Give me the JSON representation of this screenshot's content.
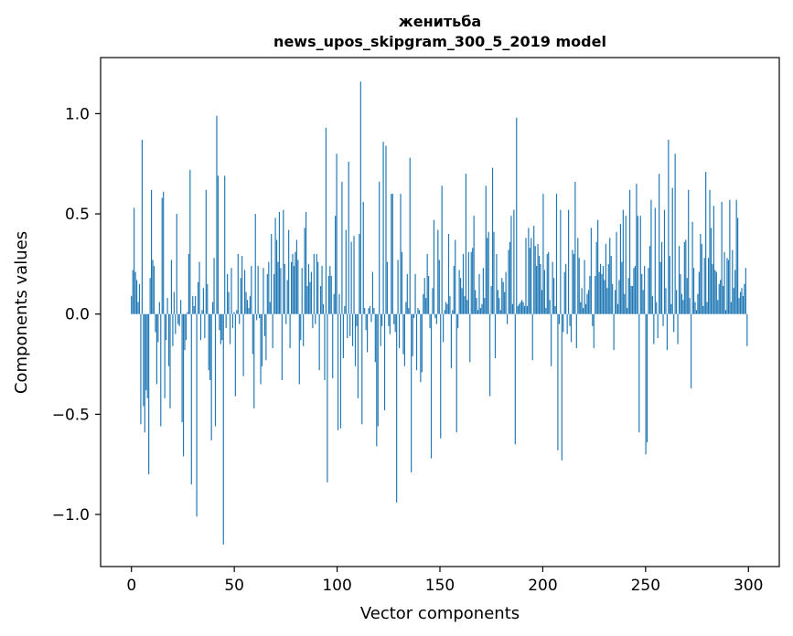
{
  "chart_data": {
    "type": "bar",
    "title": "женитьба",
    "subtitle": "news_upos_skipgram_300_5_2019 model",
    "xlabel": "Vector components",
    "ylabel": "Components values",
    "xlim": [
      -15,
      315
    ],
    "ylim": [
      -1.26,
      1.28
    ],
    "xticks": [
      0,
      50,
      100,
      150,
      200,
      250,
      300
    ],
    "yticks": [
      -1.0,
      -0.5,
      0.0,
      0.5,
      1.0
    ],
    "ytick_labels": [
      "−1.0",
      "−0.5",
      "0.0",
      "0.5",
      "1.0"
    ],
    "bar_color": "#1f77b4",
    "grid": false,
    "values": [
      0.09,
      0.22,
      0.53,
      0.21,
      0.17,
      0.06,
      0.15,
      -0.55,
      0.87,
      -0.46,
      -0.59,
      -0.38,
      -0.42,
      -0.8,
      0.18,
      0.62,
      0.27,
      0.24,
      -0.09,
      -0.35,
      -0.14,
      0.06,
      -0.56,
      0.58,
      0.61,
      -0.42,
      -0.13,
      0.08,
      -0.26,
      -0.47,
      0.27,
      -0.16,
      0.11,
      -0.1,
      0.5,
      -0.05,
      -0.06,
      0.07,
      -0.54,
      -0.71,
      -0.18,
      -0.13,
      0.01,
      0.3,
      0.72,
      -0.85,
      0.09,
      0.04,
      0.09,
      -1.01,
      0.16,
      0.26,
      -0.13,
      0.02,
      0.13,
      -0.12,
      0.62,
      0.15,
      -0.28,
      -0.33,
      -0.63,
      0.06,
      0.28,
      -0.56,
      0.99,
      0.69,
      -0.08,
      -0.15,
      -0.13,
      -1.15,
      0.69,
      -0.07,
      0.2,
      0.11,
      -0.15,
      0.23,
      -0.07,
      0.01,
      -0.41,
      0.02,
      0.3,
      -0.05,
      0.18,
      0.29,
      -0.31,
      0.22,
      0.11,
      0.07,
      0.03,
      0.09,
      0.24,
      -0.2,
      -0.47,
      0.5,
      -0.03,
      0.24,
      -0.02,
      -0.35,
      -0.26,
      0.23,
      -0.11,
      -0.23,
      0.2,
      0.26,
      0.06,
      0.4,
      -0.17,
      0.2,
      0.48,
      0.37,
      0.26,
      0.51,
      0.23,
      -0.33,
      0.52,
      0.25,
      -0.05,
      0.17,
      0.42,
      -0.17,
      0.26,
      0.3,
      0.24,
      0.31,
      0.37,
      0.27,
      -0.35,
      -0.13,
      0.23,
      -0.16,
      0.43,
      0.51,
      0.14,
      0.25,
      0.16,
      0.21,
      -0.07,
      0.3,
      -0.05,
      0.3,
      0.26,
      -0.28,
      0.14,
      0.24,
      0.05,
      -0.33,
      0.93,
      -0.84,
      0.19,
      0.24,
      0.19,
      -0.32,
      0.1,
      0.49,
      0.8,
      -0.58,
      0.1,
      -0.57,
      0.66,
      -0.22,
      0.04,
      0.42,
      -0.12,
      0.76,
      -0.11,
      0.36,
      -0.16,
      0.39,
      -0.26,
      -0.06,
      -0.42,
      0.4,
      1.16,
      -0.55,
      0.56,
      0.03,
      -0.08,
      -0.19,
      0.03,
      0.04,
      -0.04,
      0.21,
      0.03,
      -0.24,
      -0.66,
      -0.56,
      0.66,
      -0.16,
      -0.06,
      0.86,
      -0.48,
      0.84,
      0.26,
      -0.06,
      -0.1,
      0.6,
      0.6,
      -0.05,
      -0.09,
      -0.94,
      0.27,
      -0.17,
      0.6,
      0.31,
      -0.2,
      -0.26,
      0.06,
      0.2,
      0.03,
      0.78,
      -0.79,
      -0.21,
      -0.02,
      0.2,
      -0.28,
      0.03,
      0.02,
      -0.34,
      -0.29,
      0.1,
      0.18,
      0.08,
      0.3,
      0.19,
      -0.07,
      -0.72,
      0.13,
      0.47,
      -0.02,
      -0.05,
      0.42,
      0.27,
      -0.62,
      0.64,
      -0.14,
      0.02,
      0.06,
      0.05,
      0.4,
      0.09,
      -0.27,
      0.02,
      0.24,
      0.37,
      -0.59,
      -0.07,
      0.22,
      0.18,
      0.13,
      0.3,
      0.09,
      0.7,
      0.07,
      0.31,
      -0.24,
      0.31,
      0.33,
      0.49,
      0.12,
      0.08,
      0.02,
      0.2,
      0.03,
      0.05,
      0.23,
      0.08,
      0.64,
      0.38,
      0.41,
      -0.41,
      0.14,
      0.73,
      0.41,
      -0.22,
      0.3,
      0.12,
      0.08,
      0.02,
      0.18,
      0.16,
      0.11,
      0.21,
      -0.05,
      0.32,
      0.36,
      0.49,
      0.05,
      0.52,
      -0.65,
      0.98,
      0.04,
      0.05,
      0.06,
      0.07,
      0.06,
      0.04,
      0.38,
      0.04,
      0.43,
      0.33,
      0.38,
      -0.23,
      0.44,
      0.34,
      0.24,
      0.35,
      0.29,
      0.25,
      0.12,
      0.6,
      0.22,
      0.03,
      0.3,
      0.31,
      0.07,
      -0.26,
      0.26,
      0.18,
      0.04,
      0.6,
      -0.68,
      -0.05,
      0.52,
      -0.73,
      -0.09,
      0.21,
      0.25,
      -0.1,
      0.52,
      -0.06,
      -0.14,
      0.32,
      0.3,
      0.66,
      -0.17,
      0.38,
      0.28,
      0.06,
      0.13,
      0.03,
      0.27,
      0.05,
      0.1,
      0.12,
      0.19,
      0.43,
      -0.06,
      -0.17,
      0.19,
      0.36,
      0.47,
      0.21,
      0.25,
      0.2,
      0.24,
      0.17,
      0.35,
      0.13,
      0.25,
      0.38,
      0.29,
      0.15,
      -0.18,
      0.12,
      0.41,
      0.05,
      0.17,
      0.45,
      0.26,
      0.52,
      0.1,
      0.49,
      0.03,
      0.18,
      0.62,
      0.14,
      0.14,
      0.23,
      0.24,
      0.65,
      0.49,
      -0.59,
      0.49,
      0.2,
      0.12,
      0.24,
      -0.7,
      -0.64,
      0.23,
      0.34,
      0.57,
      0.09,
      -0.15,
      0.53,
      0.06,
      -0.12,
      0.7,
      0.26,
      0.36,
      -0.06,
      0.52,
      0.13,
      -0.18,
      0.87,
      0.29,
      0.05,
      0.63,
      -0.09,
      0.8,
      0.12,
      -0.15,
      0.34,
      0.2,
      0.1,
      0.07,
      0.36,
      0.37,
      0.18,
      0.62,
      0.08,
      -0.37,
      0.46,
      0.23,
      0.06,
      0.02,
      0.1,
      0.21,
      0.4,
      0.35,
      0.04,
      0.28,
      0.71,
      0.06,
      0.28,
      0.62,
      0.43,
      0.25,
      0.54,
      0.22,
      0.21,
      0.07,
      0.15,
      0.17,
      0.56,
      0.14,
      0.31,
      0.02,
      0.28,
      0.27,
      0.57,
      0.06,
      0.32,
      0.13,
      0.22,
      0.57,
      0.48,
      0.08,
      0.11,
      0.13,
      0.09,
      0.15,
      0.23,
      -0.16
    ]
  }
}
